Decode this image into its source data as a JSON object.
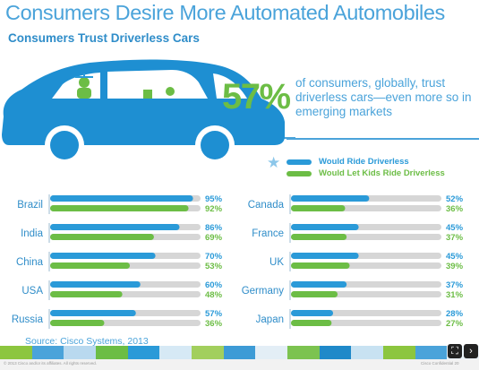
{
  "header": {
    "title": "Consumers Desire More Automated Automobiles",
    "subtitle": "Consumers Trust Driverless Cars"
  },
  "hero": {
    "percent": "57%",
    "text": "of consumers, globally, trust driverless cars—even more so in emerging markets"
  },
  "source": "Source: Cisco Systems, 2013",
  "footer": {
    "copyright": "© 2013 Cisco and/or its affiliates. All rights reserved.",
    "confidential": "Cisco Confidential    20"
  },
  "colors": {
    "title": "#4aa3da",
    "blue_bar": "#2a9ad8",
    "green_bar": "#6cbd45",
    "track": "#d6d6d6",
    "car_blue": "#1e8fd2"
  },
  "chart_data": {
    "type": "bar",
    "orientation": "horizontal",
    "unit": "%",
    "xlim": [
      0,
      100
    ],
    "legend_position": "top-right",
    "series": [
      {
        "name": "Would Ride Driverless",
        "color": "#2a9ad8"
      },
      {
        "name": "Would Let Kids Ride Driverless",
        "color": "#6cbd45"
      }
    ],
    "left_panel": [
      {
        "country": "Brazil",
        "ride": 95,
        "kids": 92
      },
      {
        "country": "India",
        "ride": 86,
        "kids": 69
      },
      {
        "country": "China",
        "ride": 70,
        "kids": 53
      },
      {
        "country": "USA",
        "ride": 60,
        "kids": 48
      },
      {
        "country": "Russia",
        "ride": 57,
        "kids": 36
      }
    ],
    "right_panel": [
      {
        "country": "Canada",
        "ride": 52,
        "kids": 36
      },
      {
        "country": "France",
        "ride": 45,
        "kids": 37
      },
      {
        "country": "UK",
        "ride": 45,
        "kids": 39
      },
      {
        "country": "Germany",
        "ride": 37,
        "kids": 31
      },
      {
        "country": "Japan",
        "ride": 28,
        "kids": 27
      }
    ]
  }
}
